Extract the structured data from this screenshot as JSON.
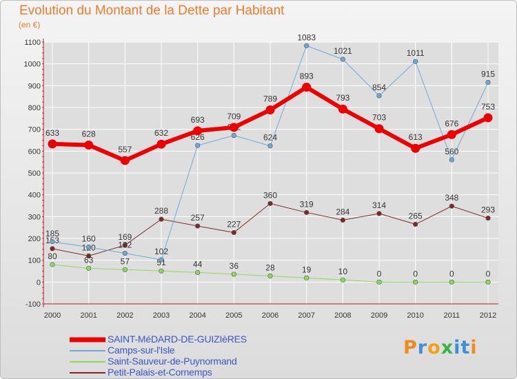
{
  "header": {
    "title": "Evolution du Montant de la Dette par Habitant",
    "unit": "(en €)"
  },
  "logo_text": "Proxiti",
  "colors": {
    "title": "#f07b2b",
    "grid": "#ffffff",
    "legend_text": "#3b55c6",
    "logo_letters": [
      "#f08a1c",
      "#3c8fd8",
      "#f0a21c",
      "#38b24a",
      "#3c8fd8",
      "#3c8fd8",
      "#f08a1c"
    ]
  },
  "chart_data": {
    "type": "line",
    "title": "Evolution du Montant de la Dette par Habitant",
    "ylabel": "(en €)",
    "x": [
      "2000",
      "2001",
      "2002",
      "2003",
      "2004",
      "2005",
      "2006",
      "2007",
      "2008",
      "2009",
      "2010",
      "2011",
      "2012"
    ],
    "ylim": [
      -100,
      1100
    ],
    "yticks": [
      -100,
      0,
      100,
      200,
      300,
      400,
      500,
      600,
      700,
      800,
      900,
      1000,
      1100
    ],
    "grid": true,
    "legend_position": "bottom-left",
    "series": [
      {
        "name": "Petit-Palais-et-Cornemps",
        "color": "#7b2a2a",
        "line_width": 1,
        "values": [
          153,
          120,
          169,
          288,
          257,
          227,
          360,
          319,
          284,
          314,
          265,
          348,
          293
        ]
      },
      {
        "name": "Saint-Sauveur-de-Puynormand",
        "color": "#8fd860",
        "line_width": 1,
        "values": [
          80,
          63,
          57,
          51,
          44,
          36,
          28,
          19,
          10,
          0,
          0,
          0,
          0
        ]
      },
      {
        "name": "Camps-sur-l'Isle",
        "color": "#6fa8d8",
        "line_width": 1,
        "values": [
          185,
          160,
          132,
          102,
          626,
          672,
          624,
          1083,
          1021,
          854,
          1011,
          560,
          915
        ]
      },
      {
        "name": "SAINT-MéDARD-DE-GUIZIèRES",
        "color": "#ee0000",
        "line_width": 6,
        "values": [
          633,
          628,
          557,
          632,
          693,
          709,
          789,
          893,
          793,
          703,
          613,
          676,
          753
        ]
      }
    ]
  },
  "legend": [
    {
      "name": "SAINT-MéDARD-DE-GUIZIèRES",
      "color": "#ee0000",
      "thickness": "thick"
    },
    {
      "name": "Camps-sur-l'Isle",
      "color": "#6fa8d8",
      "thickness": "thin"
    },
    {
      "name": "Saint-Sauveur-de-Puynormand",
      "color": "#8fd860",
      "thickness": "thin"
    },
    {
      "name": "Petit-Palais-et-Cornemps",
      "color": "#7b2a2a",
      "thickness": "thin"
    }
  ]
}
